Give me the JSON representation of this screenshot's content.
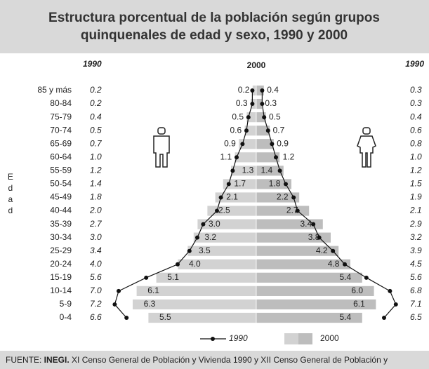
{
  "chart_data": {
    "type": "pyramid",
    "title": [
      "Estructura porcentual de la población según grupos",
      "quinquenales de edad y sexo, 1990 y 2000"
    ],
    "y_label": "Edad",
    "categories": [
      "85 y más",
      "80-84",
      "75-79",
      "70-74",
      "65-69",
      "60-64",
      "55-59",
      "50-54",
      "45-49",
      "40-44",
      "35-39",
      "30-34",
      "25-29",
      "20-24",
      "15-19",
      "10-14",
      "5-9",
      "0-4"
    ],
    "series": [
      {
        "name": "1990",
        "color": "#111111",
        "male": [
          0.2,
          0.2,
          0.4,
          0.5,
          0.7,
          1.0,
          1.2,
          1.4,
          1.8,
          2.0,
          2.7,
          3.0,
          3.4,
          4.0,
          5.6,
          7.0,
          7.2,
          6.6
        ],
        "male_value_labels": [
          "0.2",
          "0.2",
          "0.4",
          "0.5",
          "0.7",
          "1.0",
          "1.2",
          "1.4",
          "1.8",
          "2.0",
          "2.7",
          "3.0",
          "3.4",
          "4.0",
          "5.6",
          "7.0",
          "7.2",
          "6.6"
        ],
        "female": [
          0.3,
          0.3,
          0.4,
          0.6,
          0.8,
          1.0,
          1.2,
          1.5,
          1.9,
          2.1,
          2.9,
          3.2,
          3.9,
          4.5,
          5.6,
          6.8,
          7.1,
          6.5
        ],
        "female_value_labels": [
          "0.3",
          "0.3",
          "0.4",
          "0.6",
          "0.8",
          "1.0",
          "1.2",
          "1.5",
          "1.9",
          "2.1",
          "2.9",
          "3.2",
          "3.9",
          "4.5",
          "5.6",
          "6.8",
          "7.1",
          "6.5"
        ]
      },
      {
        "name": "2000",
        "color": "#d2d2d2",
        "color_right": "#bdbdbd",
        "male": [
          0.2,
          0.3,
          0.5,
          0.6,
          0.9,
          1.1,
          1.3,
          1.7,
          2.1,
          2.5,
          3.0,
          3.2,
          3.5,
          4.0,
          5.1,
          6.1,
          6.3,
          5.5
        ],
        "male_value_labels": [
          "0.2",
          "0.3",
          "0.5",
          "0.6",
          "0.9",
          "1.1",
          "1.3",
          "1.7",
          "2.1",
          "2.5",
          "3.0",
          "3.2",
          "3.5",
          "4.0",
          "5.1",
          "6.1",
          "6.3",
          "5.5"
        ],
        "female": [
          0.4,
          0.3,
          0.5,
          0.7,
          0.9,
          1.2,
          1.4,
          1.8,
          2.2,
          2.7,
          3.4,
          3.8,
          4.2,
          4.8,
          5.4,
          6.0,
          6.1,
          5.4
        ],
        "female_value_labels": [
          "0.4",
          "0.3",
          "0.5",
          "0.7",
          "0.9",
          "1.2",
          "1.4",
          "1.8",
          "2.2",
          "2.7",
          "3.4",
          "3.8",
          "4.2",
          "4.8",
          "5.4",
          "6.0",
          "6.1",
          "5.4"
        ]
      }
    ],
    "source": [
      "FUENTE: ",
      "INEGI.",
      " XI Censo General de Población y Vivienda 1990 y XII Censo General de Población y"
    ]
  }
}
